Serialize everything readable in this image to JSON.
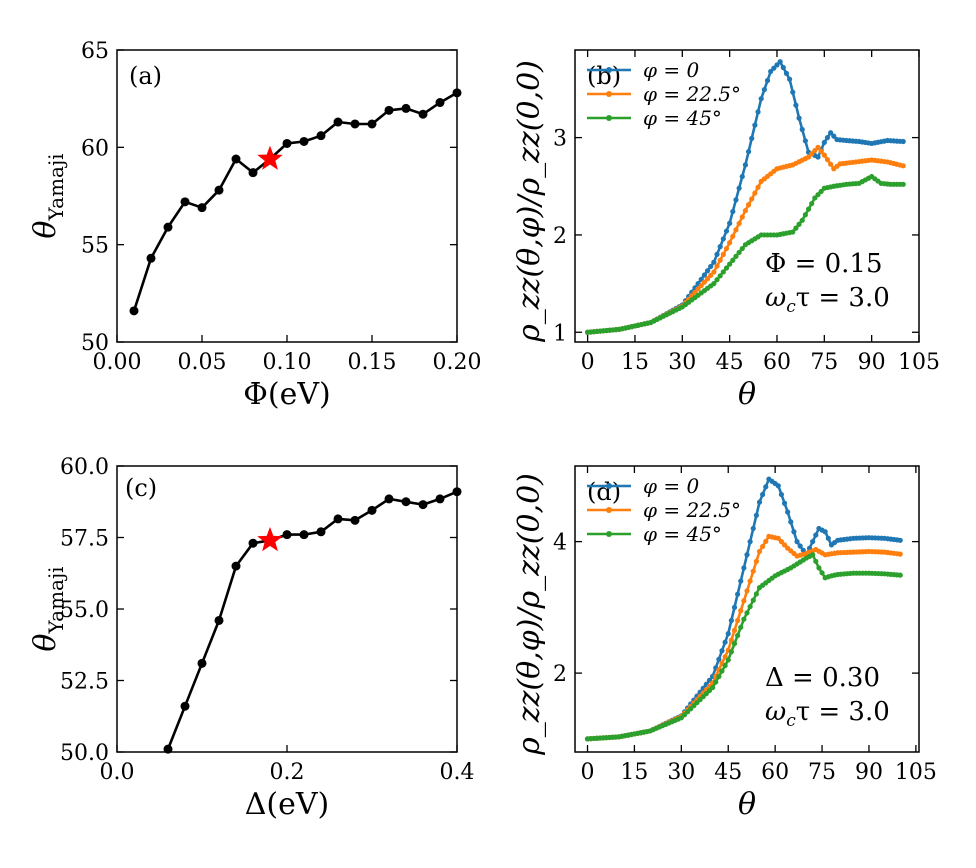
{
  "chart_data": [
    {
      "id": "a",
      "type": "line",
      "panel_label": "(a)",
      "xlabel": "Φ(eV)",
      "ylabel": "θ",
      "ylabel_sub": "Yamaji",
      "xlim": [
        0.0,
        0.2
      ],
      "ylim": [
        50,
        65
      ],
      "xticks": [
        0.0,
        0.05,
        0.1,
        0.15,
        0.2
      ],
      "xtick_labels": [
        "0.00",
        "0.05",
        "0.10",
        "0.15",
        "0.20"
      ],
      "yticks": [
        50,
        55,
        60,
        65
      ],
      "ytick_labels": [
        "50",
        "55",
        "60",
        "65"
      ],
      "series": [
        {
          "name": "θ_Yamaji",
          "color": "#000000",
          "x": [
            0.01,
            0.02,
            0.03,
            0.04,
            0.05,
            0.06,
            0.07,
            0.08,
            0.09,
            0.1,
            0.11,
            0.12,
            0.13,
            0.14,
            0.15,
            0.16,
            0.17,
            0.18,
            0.19,
            0.2
          ],
          "y": [
            51.6,
            54.3,
            55.9,
            57.2,
            56.9,
            57.8,
            59.4,
            58.7,
            59.4,
            60.2,
            60.3,
            60.6,
            61.3,
            61.2,
            61.2,
            61.9,
            62.0,
            61.7,
            62.3,
            62.8
          ]
        }
      ],
      "marker": {
        "x": 0.09,
        "y": 59.4,
        "color": "#ff0000",
        "shape": "star"
      }
    },
    {
      "id": "b",
      "type": "line",
      "panel_label": "(b)",
      "xlabel": "θ",
      "ylabel": "ρ_zz(θ,φ)/ρ_zz(0,0)",
      "xlim": [
        -4,
        105
      ],
      "ylim": [
        0.9,
        3.9
      ],
      "xticks": [
        0,
        15,
        30,
        45,
        60,
        75,
        90,
        105
      ],
      "xtick_labels": [
        "0",
        "15",
        "30",
        "45",
        "60",
        "75",
        "90",
        "105"
      ],
      "yticks": [
        1,
        2,
        3
      ],
      "ytick_labels": [
        "1",
        "2",
        "3"
      ],
      "annotation": [
        "Φ = 0.15",
        "ω",
        "c",
        "τ = 3.0"
      ],
      "series": [
        {
          "name": "φ = 0",
          "color": "#1f77b4",
          "x": [
            0,
            10,
            20,
            30,
            40,
            45,
            50,
            55,
            58,
            61,
            64,
            67,
            70,
            73,
            75,
            77,
            79,
            82,
            86,
            90,
            95,
            100
          ],
          "y": [
            1.0,
            1.03,
            1.1,
            1.28,
            1.72,
            2.12,
            2.72,
            3.4,
            3.68,
            3.78,
            3.6,
            3.2,
            2.85,
            2.8,
            2.95,
            3.05,
            2.98,
            2.97,
            2.96,
            2.94,
            2.97,
            2.96
          ]
        },
        {
          "name": "φ = 22.5°",
          "color": "#ff7f0e",
          "x": [
            0,
            10,
            20,
            30,
            40,
            45,
            50,
            55,
            60,
            65,
            70,
            73,
            75,
            78,
            80,
            85,
            90,
            95,
            100
          ],
          "y": [
            1.0,
            1.03,
            1.1,
            1.27,
            1.62,
            1.92,
            2.25,
            2.55,
            2.68,
            2.72,
            2.8,
            2.9,
            2.82,
            2.68,
            2.73,
            2.75,
            2.77,
            2.75,
            2.71
          ]
        },
        {
          "name": "φ = 45°",
          "color": "#2ca02c",
          "x": [
            0,
            10,
            20,
            30,
            40,
            45,
            50,
            55,
            60,
            65,
            68,
            72,
            75,
            78,
            82,
            86,
            90,
            93,
            96,
            100
          ],
          "y": [
            1.0,
            1.03,
            1.1,
            1.26,
            1.5,
            1.7,
            1.9,
            2.0,
            2.0,
            2.03,
            2.15,
            2.38,
            2.48,
            2.5,
            2.52,
            2.53,
            2.6,
            2.53,
            2.52,
            2.52
          ]
        }
      ]
    },
    {
      "id": "c",
      "type": "line",
      "panel_label": "(c)",
      "xlabel": "Δ(eV)",
      "ylabel": "θ",
      "ylabel_sub": "Yamaji",
      "xlim": [
        0.0,
        0.4
      ],
      "ylim": [
        50.0,
        60.0
      ],
      "xticks": [
        0.0,
        0.2,
        0.4
      ],
      "xtick_labels": [
        "0.0",
        "0.2",
        "0.4"
      ],
      "yticks": [
        50.0,
        52.5,
        55.0,
        57.5,
        60.0
      ],
      "ytick_labels": [
        "50.0",
        "52.5",
        "55.0",
        "57.5",
        "60.0"
      ],
      "series": [
        {
          "name": "θ_Yamaji",
          "color": "#000000",
          "x": [
            0.06,
            0.08,
            0.1,
            0.12,
            0.14,
            0.16,
            0.18,
            0.2,
            0.22,
            0.24,
            0.26,
            0.28,
            0.3,
            0.32,
            0.34,
            0.36,
            0.38,
            0.4
          ],
          "y": [
            50.1,
            51.6,
            53.1,
            54.6,
            56.5,
            57.3,
            57.4,
            57.6,
            57.6,
            57.7,
            58.15,
            58.1,
            58.45,
            58.85,
            58.75,
            58.65,
            58.85,
            59.1
          ]
        }
      ],
      "marker": {
        "x": 0.18,
        "y": 57.4,
        "color": "#ff0000",
        "shape": "star"
      }
    },
    {
      "id": "d",
      "type": "line",
      "panel_label": "(d)",
      "xlabel": "θ",
      "ylabel": "ρ_zz(θ,φ)/ρ_zz(0,0)",
      "xlim": [
        -4,
        106
      ],
      "ylim": [
        0.8,
        5.15
      ],
      "xticks": [
        0,
        15,
        30,
        45,
        60,
        75,
        90,
        105
      ],
      "xtick_labels": [
        "0",
        "15",
        "30",
        "45",
        "60",
        "75",
        "90",
        "105"
      ],
      "yticks": [
        2,
        4
      ],
      "ytick_labels": [
        "2",
        "4"
      ],
      "annotation": [
        "Δ = 0.30",
        "ω",
        "c",
        "τ = 3.0"
      ],
      "series": [
        {
          "name": "φ = 0",
          "color": "#1f77b4",
          "x": [
            0,
            10,
            20,
            30,
            40,
            45,
            50,
            55,
            58,
            61,
            64,
            67,
            70,
            72,
            74,
            76,
            78,
            80,
            85,
            90,
            95,
            100
          ],
          "y": [
            1.0,
            1.03,
            1.12,
            1.35,
            1.95,
            2.6,
            3.6,
            4.6,
            4.95,
            4.85,
            4.45,
            4.0,
            3.8,
            4.0,
            4.2,
            4.15,
            3.95,
            4.02,
            4.05,
            4.06,
            4.05,
            4.02
          ]
        },
        {
          "name": "φ = 22.5°",
          "color": "#ff7f0e",
          "x": [
            0,
            10,
            20,
            30,
            40,
            45,
            50,
            55,
            58,
            61,
            64,
            67,
            70,
            73,
            76,
            80,
            85,
            90,
            95,
            100
          ],
          "y": [
            1.0,
            1.03,
            1.12,
            1.34,
            1.85,
            2.35,
            3.1,
            3.85,
            4.08,
            4.05,
            3.9,
            3.78,
            3.82,
            3.88,
            3.8,
            3.83,
            3.84,
            3.85,
            3.84,
            3.81
          ]
        },
        {
          "name": "φ = 45°",
          "color": "#2ca02c",
          "x": [
            0,
            10,
            20,
            30,
            40,
            45,
            50,
            55,
            60,
            65,
            70,
            72,
            74,
            76,
            78,
            80,
            85,
            90,
            95,
            100
          ],
          "y": [
            1.0,
            1.03,
            1.12,
            1.32,
            1.78,
            2.2,
            2.82,
            3.3,
            3.48,
            3.6,
            3.75,
            3.8,
            3.6,
            3.45,
            3.48,
            3.5,
            3.52,
            3.52,
            3.51,
            3.49
          ]
        }
      ]
    }
  ]
}
